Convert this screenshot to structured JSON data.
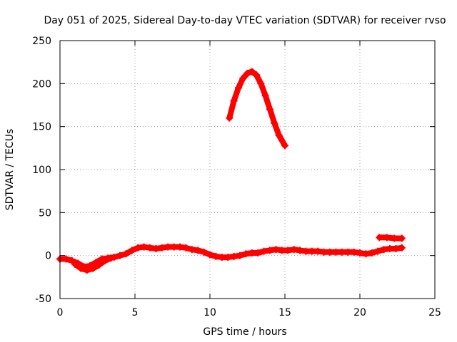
{
  "chart_data": {
    "type": "scatter",
    "title": "Day 051 of 2025, Sidereal Day-to-day VTEC variation (SDTVAR) for receiver rvso",
    "xlabel": "GPS time / hours",
    "ylabel": "SDTVAR / TECUs",
    "xlim": [
      0,
      25
    ],
    "ylim": [
      -50,
      250
    ],
    "xticks": [
      0,
      5,
      10,
      15,
      20,
      25
    ],
    "yticks": [
      -50,
      0,
      50,
      100,
      150,
      200,
      250
    ],
    "grid": true,
    "legend": "none",
    "color": "#ff0000",
    "series": [
      {
        "name": "sdtvar-main",
        "points": [
          [
            0.0,
            -4
          ],
          [
            0.4,
            -4
          ],
          [
            0.8,
            -6
          ],
          [
            1.2,
            -9
          ],
          [
            1.6,
            -13
          ],
          [
            2.0,
            -12
          ],
          [
            2.4,
            -8
          ],
          [
            2.8,
            -4
          ],
          [
            3.2,
            -3
          ],
          [
            3.6,
            -2
          ],
          [
            4.0,
            0
          ],
          [
            4.4,
            2
          ],
          [
            4.8,
            6
          ],
          [
            5.2,
            9
          ],
          [
            5.6,
            10
          ],
          [
            6.0,
            9
          ],
          [
            6.4,
            8
          ],
          [
            6.8,
            9
          ],
          [
            7.2,
            10
          ],
          [
            7.6,
            10
          ],
          [
            8.0,
            10
          ],
          [
            8.4,
            9
          ],
          [
            8.8,
            7
          ],
          [
            9.2,
            6
          ],
          [
            9.6,
            4
          ],
          [
            10.0,
            1
          ],
          [
            10.4,
            -1
          ],
          [
            10.8,
            -2
          ],
          [
            11.2,
            -2
          ],
          [
            11.6,
            -1
          ],
          [
            12.0,
            0
          ],
          [
            12.4,
            2
          ],
          [
            12.8,
            3
          ],
          [
            13.2,
            3
          ],
          [
            13.6,
            5
          ],
          [
            14.0,
            6
          ],
          [
            14.4,
            7
          ],
          [
            14.8,
            6
          ],
          [
            15.2,
            6
          ],
          [
            15.6,
            7
          ],
          [
            16.0,
            6
          ],
          [
            16.4,
            5
          ],
          [
            16.8,
            5
          ],
          [
            17.2,
            5
          ],
          [
            17.6,
            4
          ],
          [
            18.0,
            4
          ],
          [
            18.4,
            4
          ],
          [
            18.8,
            4
          ],
          [
            19.2,
            4
          ],
          [
            19.6,
            4
          ],
          [
            20.0,
            3
          ],
          [
            20.4,
            2
          ],
          [
            20.8,
            3
          ],
          [
            21.2,
            5
          ],
          [
            21.6,
            7
          ],
          [
            22.0,
            8
          ],
          [
            22.4,
            8
          ],
          [
            22.8,
            9
          ]
        ]
      },
      {
        "name": "sdtvar-secondary",
        "points": [
          [
            1.0,
            -10
          ],
          [
            1.4,
            -15
          ],
          [
            1.8,
            -17
          ],
          [
            2.2,
            -15
          ],
          [
            2.6,
            -11
          ],
          [
            3.0,
            -6
          ],
          [
            3.4,
            -3
          ]
        ]
      },
      {
        "name": "sdtvar-peak",
        "points": [
          [
            11.3,
            160
          ],
          [
            11.6,
            180
          ],
          [
            11.9,
            195
          ],
          [
            12.2,
            206
          ],
          [
            12.5,
            212
          ],
          [
            12.8,
            214
          ],
          [
            13.1,
            210
          ],
          [
            13.4,
            200
          ],
          [
            13.7,
            186
          ],
          [
            14.0,
            170
          ],
          [
            14.3,
            154
          ],
          [
            14.6,
            140
          ],
          [
            15.0,
            128
          ]
        ]
      },
      {
        "name": "sdtvar-late",
        "points": [
          [
            21.3,
            21
          ],
          [
            21.8,
            21
          ],
          [
            22.3,
            20
          ],
          [
            22.8,
            20
          ]
        ]
      }
    ]
  }
}
